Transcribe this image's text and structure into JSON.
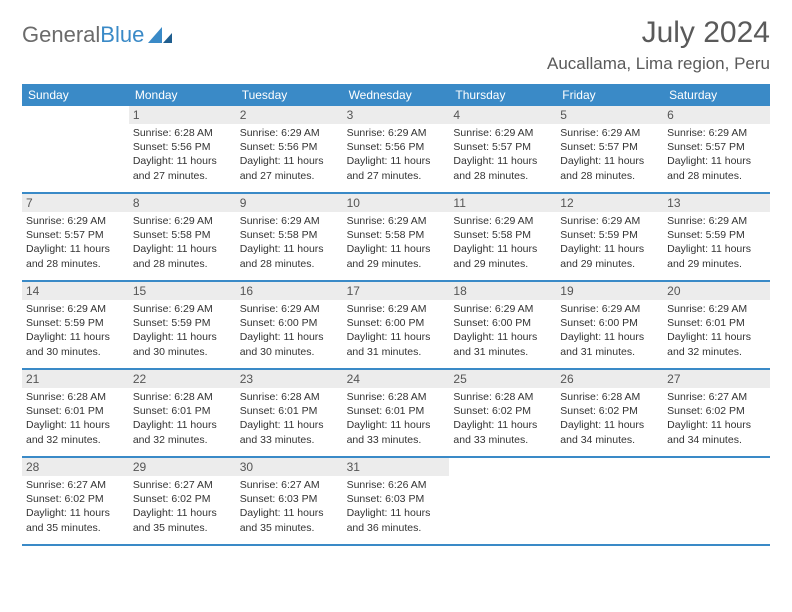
{
  "brand": {
    "part1": "General",
    "part2": "Blue"
  },
  "header": {
    "month_title": "July 2024",
    "location": "Aucallama, Lima region, Peru"
  },
  "colors": {
    "accent": "#3a8ac7",
    "daynum_bg": "#ececec",
    "text": "#333333",
    "header_text": "#5a5a5a"
  },
  "weekdays": [
    "Sunday",
    "Monday",
    "Tuesday",
    "Wednesday",
    "Thursday",
    "Friday",
    "Saturday"
  ],
  "weeks": [
    [
      {
        "day": "",
        "sunrise": "",
        "sunset": "",
        "daylight": ""
      },
      {
        "day": "1",
        "sunrise": "Sunrise: 6:28 AM",
        "sunset": "Sunset: 5:56 PM",
        "daylight": "Daylight: 11 hours and 27 minutes."
      },
      {
        "day": "2",
        "sunrise": "Sunrise: 6:29 AM",
        "sunset": "Sunset: 5:56 PM",
        "daylight": "Daylight: 11 hours and 27 minutes."
      },
      {
        "day": "3",
        "sunrise": "Sunrise: 6:29 AM",
        "sunset": "Sunset: 5:56 PM",
        "daylight": "Daylight: 11 hours and 27 minutes."
      },
      {
        "day": "4",
        "sunrise": "Sunrise: 6:29 AM",
        "sunset": "Sunset: 5:57 PM",
        "daylight": "Daylight: 11 hours and 28 minutes."
      },
      {
        "day": "5",
        "sunrise": "Sunrise: 6:29 AM",
        "sunset": "Sunset: 5:57 PM",
        "daylight": "Daylight: 11 hours and 28 minutes."
      },
      {
        "day": "6",
        "sunrise": "Sunrise: 6:29 AM",
        "sunset": "Sunset: 5:57 PM",
        "daylight": "Daylight: 11 hours and 28 minutes."
      }
    ],
    [
      {
        "day": "7",
        "sunrise": "Sunrise: 6:29 AM",
        "sunset": "Sunset: 5:57 PM",
        "daylight": "Daylight: 11 hours and 28 minutes."
      },
      {
        "day": "8",
        "sunrise": "Sunrise: 6:29 AM",
        "sunset": "Sunset: 5:58 PM",
        "daylight": "Daylight: 11 hours and 28 minutes."
      },
      {
        "day": "9",
        "sunrise": "Sunrise: 6:29 AM",
        "sunset": "Sunset: 5:58 PM",
        "daylight": "Daylight: 11 hours and 28 minutes."
      },
      {
        "day": "10",
        "sunrise": "Sunrise: 6:29 AM",
        "sunset": "Sunset: 5:58 PM",
        "daylight": "Daylight: 11 hours and 29 minutes."
      },
      {
        "day": "11",
        "sunrise": "Sunrise: 6:29 AM",
        "sunset": "Sunset: 5:58 PM",
        "daylight": "Daylight: 11 hours and 29 minutes."
      },
      {
        "day": "12",
        "sunrise": "Sunrise: 6:29 AM",
        "sunset": "Sunset: 5:59 PM",
        "daylight": "Daylight: 11 hours and 29 minutes."
      },
      {
        "day": "13",
        "sunrise": "Sunrise: 6:29 AM",
        "sunset": "Sunset: 5:59 PM",
        "daylight": "Daylight: 11 hours and 29 minutes."
      }
    ],
    [
      {
        "day": "14",
        "sunrise": "Sunrise: 6:29 AM",
        "sunset": "Sunset: 5:59 PM",
        "daylight": "Daylight: 11 hours and 30 minutes."
      },
      {
        "day": "15",
        "sunrise": "Sunrise: 6:29 AM",
        "sunset": "Sunset: 5:59 PM",
        "daylight": "Daylight: 11 hours and 30 minutes."
      },
      {
        "day": "16",
        "sunrise": "Sunrise: 6:29 AM",
        "sunset": "Sunset: 6:00 PM",
        "daylight": "Daylight: 11 hours and 30 minutes."
      },
      {
        "day": "17",
        "sunrise": "Sunrise: 6:29 AM",
        "sunset": "Sunset: 6:00 PM",
        "daylight": "Daylight: 11 hours and 31 minutes."
      },
      {
        "day": "18",
        "sunrise": "Sunrise: 6:29 AM",
        "sunset": "Sunset: 6:00 PM",
        "daylight": "Daylight: 11 hours and 31 minutes."
      },
      {
        "day": "19",
        "sunrise": "Sunrise: 6:29 AM",
        "sunset": "Sunset: 6:00 PM",
        "daylight": "Daylight: 11 hours and 31 minutes."
      },
      {
        "day": "20",
        "sunrise": "Sunrise: 6:29 AM",
        "sunset": "Sunset: 6:01 PM",
        "daylight": "Daylight: 11 hours and 32 minutes."
      }
    ],
    [
      {
        "day": "21",
        "sunrise": "Sunrise: 6:28 AM",
        "sunset": "Sunset: 6:01 PM",
        "daylight": "Daylight: 11 hours and 32 minutes."
      },
      {
        "day": "22",
        "sunrise": "Sunrise: 6:28 AM",
        "sunset": "Sunset: 6:01 PM",
        "daylight": "Daylight: 11 hours and 32 minutes."
      },
      {
        "day": "23",
        "sunrise": "Sunrise: 6:28 AM",
        "sunset": "Sunset: 6:01 PM",
        "daylight": "Daylight: 11 hours and 33 minutes."
      },
      {
        "day": "24",
        "sunrise": "Sunrise: 6:28 AM",
        "sunset": "Sunset: 6:01 PM",
        "daylight": "Daylight: 11 hours and 33 minutes."
      },
      {
        "day": "25",
        "sunrise": "Sunrise: 6:28 AM",
        "sunset": "Sunset: 6:02 PM",
        "daylight": "Daylight: 11 hours and 33 minutes."
      },
      {
        "day": "26",
        "sunrise": "Sunrise: 6:28 AM",
        "sunset": "Sunset: 6:02 PM",
        "daylight": "Daylight: 11 hours and 34 minutes."
      },
      {
        "day": "27",
        "sunrise": "Sunrise: 6:27 AM",
        "sunset": "Sunset: 6:02 PM",
        "daylight": "Daylight: 11 hours and 34 minutes."
      }
    ],
    [
      {
        "day": "28",
        "sunrise": "Sunrise: 6:27 AM",
        "sunset": "Sunset: 6:02 PM",
        "daylight": "Daylight: 11 hours and 35 minutes."
      },
      {
        "day": "29",
        "sunrise": "Sunrise: 6:27 AM",
        "sunset": "Sunset: 6:02 PM",
        "daylight": "Daylight: 11 hours and 35 minutes."
      },
      {
        "day": "30",
        "sunrise": "Sunrise: 6:27 AM",
        "sunset": "Sunset: 6:03 PM",
        "daylight": "Daylight: 11 hours and 35 minutes."
      },
      {
        "day": "31",
        "sunrise": "Sunrise: 6:26 AM",
        "sunset": "Sunset: 6:03 PM",
        "daylight": "Daylight: 11 hours and 36 minutes."
      },
      {
        "day": "",
        "sunrise": "",
        "sunset": "",
        "daylight": ""
      },
      {
        "day": "",
        "sunrise": "",
        "sunset": "",
        "daylight": ""
      },
      {
        "day": "",
        "sunrise": "",
        "sunset": "",
        "daylight": ""
      }
    ]
  ]
}
